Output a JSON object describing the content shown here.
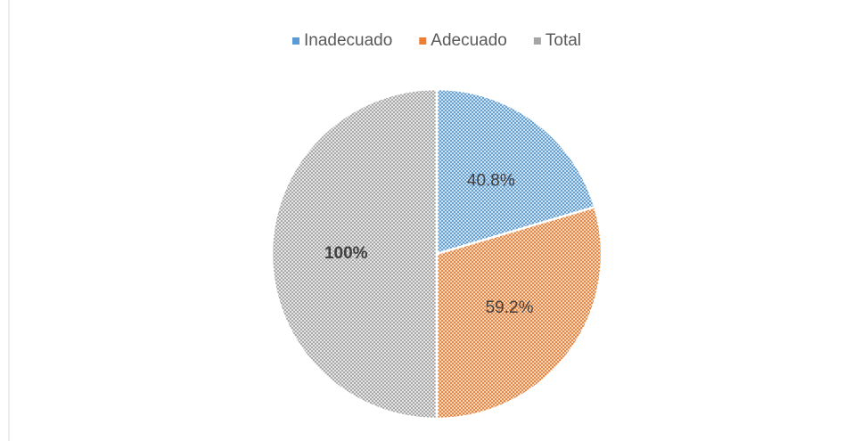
{
  "chart_data": {
    "type": "pie",
    "categories": [
      "Inadecuado",
      "Adecuado",
      "Total"
    ],
    "values": [
      40.8,
      59.2,
      100
    ],
    "value_labels": [
      "40.8%",
      "59.2%",
      "100%"
    ],
    "colors": [
      "#5b9bd5",
      "#ed7d31",
      "#a5a5a5"
    ],
    "legend": "top"
  }
}
